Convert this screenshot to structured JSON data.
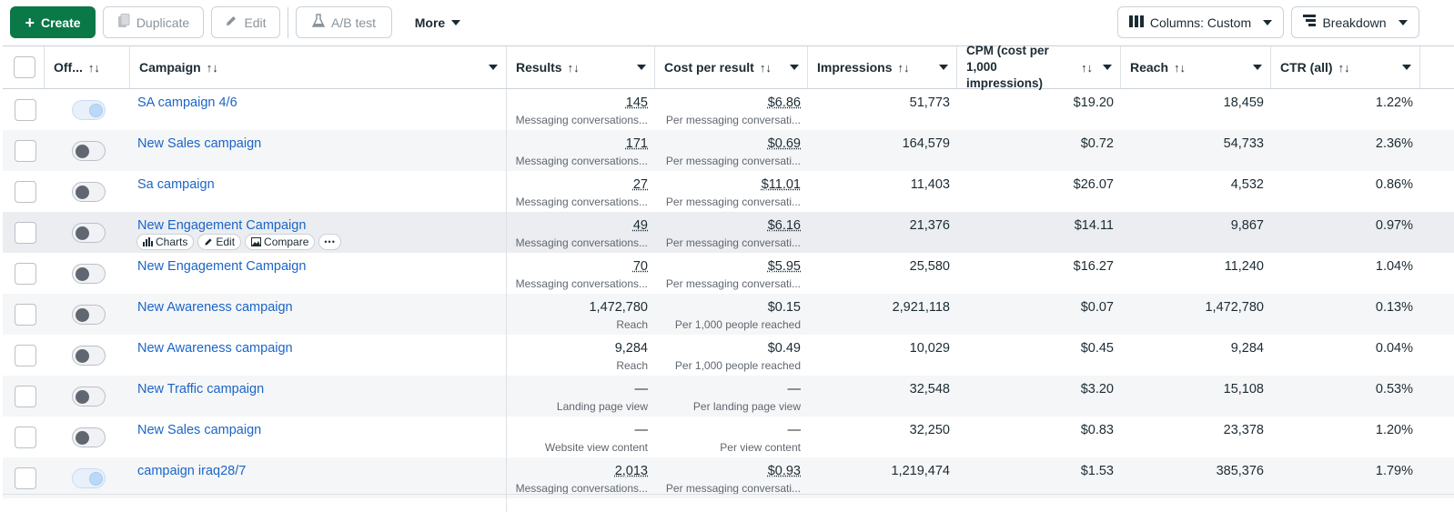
{
  "toolbar": {
    "create": "Create",
    "duplicate": "Duplicate",
    "edit": "Edit",
    "ab_test": "A/B test",
    "more": "More",
    "columns": "Columns: Custom",
    "breakdown": "Breakdown"
  },
  "columns": {
    "off": "Off...",
    "campaign": "Campaign",
    "results": "Results",
    "cost_per_result": "Cost per result",
    "impressions": "Impressions",
    "cpm": "CPM (cost per 1,000 impressions)",
    "reach": "Reach",
    "ctr": "CTR (all)",
    "sort_glyph": "↑↓"
  },
  "row_actions": {
    "charts": "Charts",
    "edit": "Edit",
    "compare": "Compare",
    "more": "•••"
  },
  "rows": [
    {
      "name": "SA campaign 4/6",
      "on": true,
      "results": "145",
      "results_sub": "Messaging conversations...",
      "cpr": "$6.86",
      "cpr_sub": "Per messaging conversati...",
      "impressions": "51,773",
      "cpm": "$19.20",
      "reach": "18,459",
      "ctr": "1.22%"
    },
    {
      "name": "New Sales campaign",
      "on": false,
      "results": "171",
      "results_sub": "Messaging conversations...",
      "cpr": "$0.69",
      "cpr_sub": "Per messaging conversati...",
      "impressions": "164,579",
      "cpm": "$0.72",
      "reach": "54,733",
      "ctr": "2.36%"
    },
    {
      "name": "Sa campaign",
      "on": false,
      "results": "27",
      "results_sub": "Messaging conversations...",
      "cpr": "$11.01",
      "cpr_sub": "Per messaging conversati...",
      "impressions": "11,403",
      "cpm": "$26.07",
      "reach": "4,532",
      "ctr": "0.86%"
    },
    {
      "name": "New Engagement Campaign",
      "on": false,
      "results": "49",
      "results_sub": "Messaging conversations...",
      "cpr": "$6.16",
      "cpr_sub": "Per messaging conversati...",
      "impressions": "21,376",
      "cpm": "$14.11",
      "reach": "9,867",
      "ctr": "0.97%"
    },
    {
      "name": "New Engagement Campaign",
      "on": false,
      "results": "70",
      "results_sub": "Messaging conversations...",
      "cpr": "$5.95",
      "cpr_sub": "Per messaging conversati...",
      "impressions": "25,580",
      "cpm": "$16.27",
      "reach": "11,240",
      "ctr": "1.04%"
    },
    {
      "name": "New Awareness campaign",
      "on": false,
      "results": "1,472,780",
      "results_sub": "Reach",
      "cpr": "$0.15",
      "cpr_sub": "Per 1,000 people reached",
      "impressions": "2,921,118",
      "cpm": "$0.07",
      "reach": "1,472,780",
      "ctr": "0.13%"
    },
    {
      "name": "New Awareness campaign",
      "on": false,
      "results": "9,284",
      "results_sub": "Reach",
      "cpr": "$0.49",
      "cpr_sub": "Per 1,000 people reached",
      "impressions": "10,029",
      "cpm": "$0.45",
      "reach": "9,284",
      "ctr": "0.04%"
    },
    {
      "name": "New Traffic campaign",
      "on": false,
      "results": "—",
      "results_sub": "Landing page view",
      "cpr": "—",
      "cpr_sub": "Per landing page view",
      "impressions": "32,548",
      "cpm": "$3.20",
      "reach": "15,108",
      "ctr": "0.53%"
    },
    {
      "name": "New Sales campaign",
      "on": false,
      "results": "—",
      "results_sub": "Website view content",
      "cpr": "—",
      "cpr_sub": "Per view content",
      "impressions": "32,250",
      "cpm": "$0.83",
      "reach": "23,378",
      "ctr": "1.20%"
    },
    {
      "name": "campaign iraq28/7",
      "on": true,
      "results": "2,013",
      "results_sub": "Messaging conversations...",
      "cpr": "$0.93",
      "cpr_sub": "Per messaging conversati...",
      "impressions": "1,219,474",
      "cpm": "$1.53",
      "reach": "385,376",
      "ctr": "1.79%"
    }
  ],
  "colors": {
    "create_green": "#0a7847",
    "link_blue": "#1b65c8"
  }
}
